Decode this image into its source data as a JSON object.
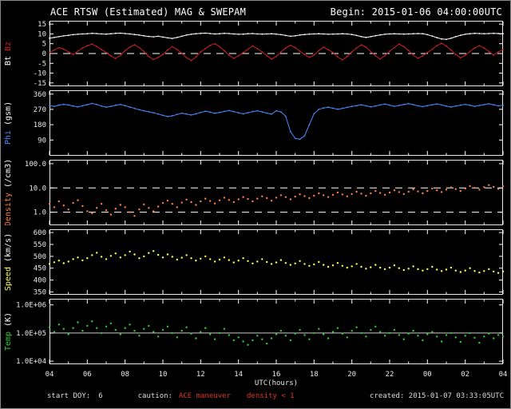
{
  "window": {
    "title_left": "ACE RTSW (Estimated) MAG & SWEPAM",
    "title_right": "Begin: 2015-01-06 04:00:00UTC"
  },
  "xaxis": {
    "label": "UTC(hours)",
    "start_hour": 4,
    "end_hour": 28,
    "tick_step_hours": 2,
    "ticks": [
      "04",
      "06",
      "08",
      "10",
      "12",
      "14",
      "16",
      "18",
      "20",
      "22",
      "00",
      "02",
      "04"
    ]
  },
  "footer": {
    "start_doy_label": "start DOY:",
    "start_doy_value": "6",
    "caution_label": "caution:",
    "caution_value": "ACE maneuver",
    "density_note": "density < 1",
    "created": "created: 2015-01-07 03:33:05UTC"
  },
  "colors": {
    "background": "#000000",
    "frame": "#e8e8e8",
    "bt": "#ffffff",
    "bz": "#cc2222",
    "phi": "#4a8cff",
    "density": "#ff7f3f",
    "speed": "#ffff55",
    "temp": "#33cc33"
  },
  "chart_data": [
    {
      "name": "bt-bz",
      "type": "line",
      "ylabel": [
        {
          "text": "Bt",
          "color": "#ffffff"
        },
        {
          "text": "Bz",
          "color": "#cc2222"
        }
      ],
      "yscale": "linear",
      "yrange": [
        -16.5,
        16.5
      ],
      "yticks": [
        {
          "v": 15,
          "label": "15"
        },
        {
          "v": 10,
          "label": "10"
        },
        {
          "v": 5,
          "label": "5"
        },
        {
          "v": 0,
          "label": "0"
        },
        {
          "v": -5,
          "label": "-5"
        },
        {
          "v": -10,
          "label": "-10"
        },
        {
          "v": -15,
          "label": "-15"
        }
      ],
      "ref_lines": [
        {
          "v": 0,
          "style": "dashed",
          "color": "#ffffff"
        }
      ],
      "x_start": 4,
      "x_step": 0.25,
      "series": [
        {
          "name": "Bt",
          "color": "#ffffff",
          "style": "line",
          "values": [
            7.8,
            8.2,
            8.6,
            9.0,
            9.3,
            9.6,
            9.8,
            10.0,
            10.1,
            10.3,
            10.2,
            10.0,
            9.9,
            10.1,
            10.3,
            10.4,
            10.2,
            10.0,
            9.7,
            9.4,
            9.0,
            8.7,
            8.5,
            8.8,
            8.4,
            8.0,
            7.7,
            8.2,
            8.8,
            9.4,
            9.8,
            10.1,
            10.3,
            10.4,
            10.2,
            10.0,
            10.1,
            10.3,
            10.2,
            10.0,
            9.8,
            9.9,
            10.1,
            10.2,
            10.0,
            9.9,
            10.0,
            10.1,
            9.9,
            9.6,
            9.2,
            8.8,
            9.0,
            9.4,
            9.7,
            9.9,
            10.0,
            10.1,
            10.0,
            9.8,
            9.9,
            10.0,
            10.1,
            10.0,
            9.7,
            9.2,
            8.6,
            8.2,
            8.6,
            9.1,
            9.5,
            9.8,
            10.0,
            10.1,
            10.0,
            9.9,
            10.0,
            10.1,
            10.2,
            10.1,
            9.6,
            8.9,
            8.1,
            7.4,
            7.2,
            7.8,
            8.6,
            9.3,
            9.8,
            10.1,
            10.3,
            10.2,
            10.1,
            10.2,
            10.3,
            10.2,
            10.1
          ]
        },
        {
          "name": "Bz",
          "color": "#cc2222",
          "style": "line",
          "values": [
            0.5,
            1.8,
            3.0,
            2.2,
            0.8,
            -0.5,
            1.2,
            2.8,
            4.0,
            4.8,
            3.6,
            2.0,
            0.5,
            -1.2,
            -2.5,
            -1.0,
            1.5,
            3.2,
            4.5,
            3.0,
            1.0,
            -1.5,
            -3.0,
            -2.0,
            -0.5,
            1.8,
            3.5,
            2.0,
            0.2,
            -2.2,
            -3.5,
            -1.8,
            0.8,
            2.5,
            4.2,
            5.0,
            3.5,
            1.5,
            -0.8,
            -2.5,
            -1.2,
            0.5,
            2.2,
            3.8,
            2.5,
            0.8,
            -1.0,
            -2.8,
            -1.5,
            0.8,
            2.8,
            4.2,
            3.0,
            1.2,
            -0.5,
            -2.0,
            -0.8,
            1.5,
            3.2,
            2.0,
            0.5,
            -1.8,
            -3.2,
            -1.5,
            0.8,
            2.8,
            4.5,
            3.2,
            1.0,
            -1.2,
            -2.8,
            -1.0,
            1.2,
            3.0,
            4.8,
            3.5,
            1.5,
            -0.8,
            -2.5,
            -1.2,
            0.5,
            2.2,
            4.0,
            5.2,
            3.8,
            1.8,
            -0.5,
            -2.2,
            -1.0,
            1.0,
            2.8,
            4.0,
            2.8,
            1.0,
            -0.8,
            0.8,
            2.0
          ]
        }
      ]
    },
    {
      "name": "phi",
      "type": "line",
      "ylabel": [
        {
          "text": "Phi",
          "color": "#4a8cff"
        },
        {
          "text": "(gsm)",
          "color": "#ffffff"
        }
      ],
      "yscale": "linear",
      "yrange": [
        0,
        380
      ],
      "yticks": [
        {
          "v": 360,
          "label": "360"
        },
        {
          "v": 270,
          "label": "270"
        },
        {
          "v": 180,
          "label": "180"
        },
        {
          "v": 90,
          "label": "90"
        }
      ],
      "ref_lines": [],
      "x_start": 4,
      "x_step": 0.25,
      "series": [
        {
          "name": "Phi",
          "color": "#4a8cff",
          "style": "line",
          "values": [
            292,
            288,
            295,
            300,
            296,
            290,
            285,
            291,
            298,
            305,
            299,
            290,
            283,
            288,
            294,
            299,
            292,
            284,
            276,
            268,
            262,
            256,
            250,
            243,
            235,
            228,
            232,
            240,
            248,
            243,
            237,
            244,
            252,
            259,
            254,
            247,
            252,
            258,
            263,
            257,
            250,
            244,
            250,
            257,
            262,
            255,
            248,
            242,
            262,
            255,
            230,
            140,
            100,
            95,
            115,
            180,
            245,
            270,
            278,
            283,
            277,
            271,
            276,
            282,
            287,
            292,
            297,
            291,
            285,
            290,
            296,
            301,
            295,
            288,
            293,
            299,
            304,
            298,
            291,
            286,
            292,
            297,
            302,
            296,
            289,
            284,
            290,
            295,
            300,
            294,
            288,
            293,
            298,
            303,
            297,
            291,
            295
          ]
        }
      ]
    },
    {
      "name": "density",
      "type": "scatter",
      "ylabel": [
        {
          "text": "Density",
          "color": "#ff7f3f"
        },
        {
          "text": "(/cm3)",
          "color": "#ffffff"
        }
      ],
      "yscale": "log",
      "yrange": [
        0.3,
        140
      ],
      "yticks": [
        {
          "v": 100,
          "label": "100.0"
        },
        {
          "v": 10,
          "label": "10.0"
        },
        {
          "v": 1,
          "label": "1.0"
        }
      ],
      "ref_lines": [
        {
          "v": 10,
          "style": "dashed",
          "color": "#ffffff"
        },
        {
          "v": 1,
          "style": "dashed",
          "color": "#ffffff"
        }
      ],
      "x_start": 4,
      "x_step": 0.25,
      "series": [
        {
          "name": "Density",
          "color": "#ff7f3f",
          "style": "scatter",
          "values": [
            2.2,
            1.6,
            2.8,
            1.9,
            1.3,
            2.4,
            3.1,
            1.8,
            1.1,
            0.9,
            1.5,
            2.2,
            1.2,
            0.8,
            1.4,
            2.0,
            1.6,
            1.0,
            0.7,
            1.3,
            2.1,
            1.5,
            1.1,
            1.7,
            2.4,
            3.0,
            2.2,
            1.6,
            2.5,
            3.3,
            2.6,
            2.0,
            2.8,
            3.6,
            2.9,
            2.3,
            3.1,
            4.0,
            3.2,
            2.6,
            3.4,
            4.2,
            3.5,
            2.8,
            3.6,
            4.5,
            3.8,
            3.0,
            4.0,
            5.0,
            4.2,
            3.4,
            4.4,
            5.5,
            4.6,
            3.8,
            4.8,
            6.0,
            5.0,
            4.2,
            5.2,
            6.5,
            5.4,
            4.5,
            5.6,
            7.0,
            5.8,
            4.8,
            6.0,
            7.5,
            6.2,
            5.2,
            6.5,
            8.0,
            6.8,
            5.6,
            7.0,
            8.8,
            7.2,
            6.0,
            7.5,
            9.5,
            8.0,
            6.8,
            8.5,
            10.5,
            9.0,
            7.5,
            9.5,
            12.0,
            10.0,
            8.5,
            10.8,
            13.0,
            11.0,
            9.2,
            11.5
          ]
        }
      ]
    },
    {
      "name": "speed",
      "type": "scatter",
      "ylabel": [
        {
          "text": "Speed",
          "color": "#ffff55"
        },
        {
          "text": "(km/s)",
          "color": "#ffffff"
        }
      ],
      "yscale": "linear",
      "yrange": [
        340,
        612
      ],
      "yticks": [
        {
          "v": 600,
          "label": "600"
        },
        {
          "v": 550,
          "label": "550"
        },
        {
          "v": 500,
          "label": "500"
        },
        {
          "v": 450,
          "label": "450"
        },
        {
          "v": 400,
          "label": "400"
        },
        {
          "v": 350,
          "label": "350"
        }
      ],
      "ref_lines": [],
      "x_start": 4,
      "x_step": 0.25,
      "series": [
        {
          "name": "Speed",
          "color": "#ffff55",
          "style": "scatter",
          "values": [
            468,
            475,
            482,
            471,
            478,
            488,
            495,
            483,
            492,
            505,
            515,
            498,
            488,
            502,
            512,
            495,
            505,
            520,
            508,
            492,
            500,
            514,
            522,
            506,
            495,
            508,
            498,
            486,
            494,
            505,
            492,
            482,
            490,
            500,
            488,
            478,
            486,
            495,
            484,
            474,
            482,
            492,
            480,
            470,
            478,
            488,
            476,
            468,
            474,
            484,
            472,
            464,
            470,
            480,
            468,
            460,
            466,
            476,
            464,
            456,
            462,
            472,
            460,
            452,
            458,
            468,
            456,
            448,
            454,
            464,
            452,
            446,
            452,
            462,
            450,
            442,
            448,
            458,
            446,
            440,
            446,
            456,
            444,
            438,
            444,
            452,
            440,
            434,
            440,
            450,
            438,
            432,
            438,
            446,
            436,
            430,
            436
          ]
        }
      ]
    },
    {
      "name": "temp",
      "type": "scatter",
      "ylabel": [
        {
          "text": "Temp",
          "color": "#33cc33"
        },
        {
          "text": "(K)",
          "color": "#ffffff"
        }
      ],
      "yscale": "log",
      "yrange": [
        8000,
        1600000
      ],
      "yticks": [
        {
          "v": 1000000,
          "label": "1.0E+06"
        },
        {
          "v": 100000,
          "label": "1.0E+05"
        },
        {
          "v": 10000,
          "label": "1.0E+04"
        }
      ],
      "ref_lines": [
        {
          "v": 100000,
          "style": "solid",
          "color": "#cccccc"
        }
      ],
      "x_start": 4,
      "x_step": 0.25,
      "series": [
        {
          "name": "Temp",
          "color": "#33cc33",
          "style": "scatter",
          "values": [
            160000,
            110000,
            200000,
            140000,
            90000,
            150000,
            240000,
            120000,
            180000,
            260000,
            150000,
            100000,
            170000,
            220000,
            130000,
            90000,
            150000,
            200000,
            120000,
            80000,
            140000,
            180000,
            110000,
            75000,
            130000,
            170000,
            100000,
            70000,
            120000,
            160000,
            95000,
            65000,
            110000,
            150000,
            90000,
            60000,
            100000,
            140000,
            85000,
            55000,
            70000,
            50000,
            38000,
            55000,
            80000,
            60000,
            42000,
            65000,
            90000,
            120000,
            80000,
            55000,
            95000,
            130000,
            85000,
            60000,
            100000,
            140000,
            90000,
            65000,
            110000,
            150000,
            95000,
            70000,
            120000,
            160000,
            100000,
            75000,
            130000,
            170000,
            110000,
            80000,
            100000,
            130000,
            85000,
            60000,
            95000,
            120000,
            80000,
            55000,
            90000,
            110000,
            75000,
            50000,
            85000,
            100000,
            70000,
            48000,
            80000,
            100000,
            68000,
            45000,
            75000,
            95000,
            65000,
            85000,
            75000
          ]
        }
      ]
    }
  ]
}
